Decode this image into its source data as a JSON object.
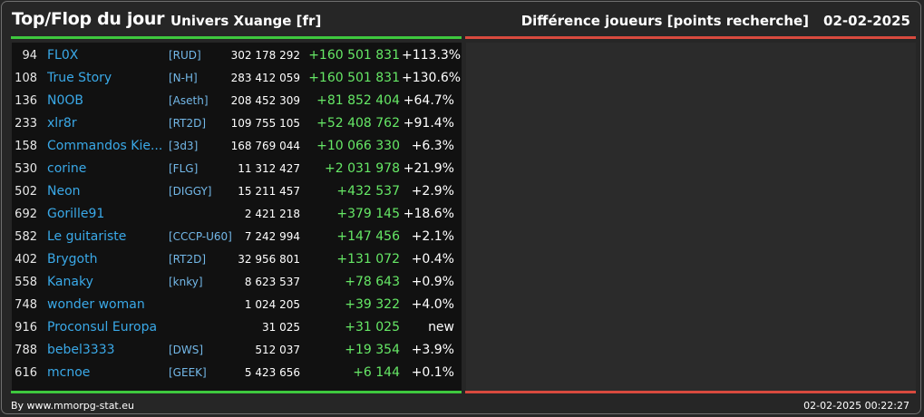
{
  "header": {
    "title": "Top/Flop du jour",
    "universe": "Univers Xuange [fr]",
    "subtitle": "Différence joueurs [points recherche]",
    "date": "02-02-2025"
  },
  "colors": {
    "background": "#262626",
    "top_panel": "#111111",
    "flop_panel": "#2b2b2b",
    "top_line": "#3ec83e",
    "flop_line": "#d84a3e",
    "player_name": "#3aa9e8",
    "alliance": "#73b8e8",
    "positive_diff": "#66e866"
  },
  "top_rows": [
    {
      "rank": "94",
      "name": "FL0X",
      "alliance": "[RUD]",
      "points": "302 178 292",
      "diff": "+160 501 831",
      "pct": "+113.3%"
    },
    {
      "rank": "108",
      "name": "True Story",
      "alliance": "[N-H]",
      "points": "283 412 059",
      "diff": "+160 501 831",
      "pct": "+130.6%"
    },
    {
      "rank": "136",
      "name": "N0OB",
      "alliance": "[Aseth]",
      "points": "208 452 309",
      "diff": "+81 852 404",
      "pct": "+64.7%"
    },
    {
      "rank": "233",
      "name": "xlr8r",
      "alliance": "[RT2D]",
      "points": "109 755 105",
      "diff": "+52 408 762",
      "pct": "+91.4%"
    },
    {
      "rank": "158",
      "name": "Commandos Kie...",
      "alliance": "[3d3]",
      "points": "168 769 044",
      "diff": "+10 066 330",
      "pct": "+6.3%"
    },
    {
      "rank": "530",
      "name": "corine",
      "alliance": "[FLG]",
      "points": "11 312 427",
      "diff": "+2 031 978",
      "pct": "+21.9%"
    },
    {
      "rank": "502",
      "name": "Neon",
      "alliance": "[DIGGY]",
      "points": "15 211 457",
      "diff": "+432 537",
      "pct": "+2.9%"
    },
    {
      "rank": "692",
      "name": "Gorille91",
      "alliance": "",
      "points": "2 421 218",
      "diff": "+379 145",
      "pct": "+18.6%"
    },
    {
      "rank": "582",
      "name": "Le guitariste",
      "alliance": "[CCCP-U60]",
      "points": "7 242 994",
      "diff": "+147 456",
      "pct": "+2.1%"
    },
    {
      "rank": "402",
      "name": "Brygoth",
      "alliance": "[RT2D]",
      "points": "32 956 801",
      "diff": "+131 072",
      "pct": "+0.4%"
    },
    {
      "rank": "558",
      "name": "Kanaky",
      "alliance": "[knky]",
      "points": "8 623 537",
      "diff": "+78 643",
      "pct": "+0.9%"
    },
    {
      "rank": "748",
      "name": "wonder woman",
      "alliance": "",
      "points": "1 024 205",
      "diff": "+39 322",
      "pct": "+4.0%"
    },
    {
      "rank": "916",
      "name": "Proconsul Europa",
      "alliance": "",
      "points": "31 025",
      "diff": "+31 025",
      "pct": "new"
    },
    {
      "rank": "788",
      "name": "bebel3333",
      "alliance": "[DWS]",
      "points": "512 037",
      "diff": "+19 354",
      "pct": "+3.9%"
    },
    {
      "rank": "616",
      "name": "mcnoe",
      "alliance": "[GEEK]",
      "points": "5 423 656",
      "diff": "+6 144",
      "pct": "+0.1%"
    }
  ],
  "footer": {
    "source": "By www.mmorpg-stat.eu",
    "timestamp": "02-02-2025 00:22:27"
  }
}
